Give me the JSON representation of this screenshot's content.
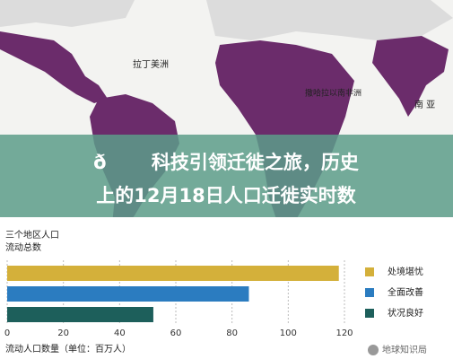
{
  "map": {
    "labels": [
      "拉丁美洲",
      "撒哈拉以南非洲",
      "南 亚"
    ]
  },
  "banner": {
    "lines": [
      "ð科技引领迁徙之旅，历史",
      "上的12月18日人口迁徙实时数"
    ]
  },
  "chart_data": {
    "type": "bar",
    "orientation": "horizontal",
    "title": [
      "三个地区人口",
      "流动总数"
    ],
    "categories": [
      "处境堪忧",
      "全面改善",
      "状况良好"
    ],
    "values": [
      118,
      86,
      52
    ],
    "colors": [
      "#d4b03a",
      "#2b7cc0",
      "#1d5f5b"
    ],
    "xlim": [
      0,
      120
    ],
    "xticks": [
      0,
      20,
      40,
      60,
      80,
      100,
      120
    ],
    "xlabel": "流动人口数量（单位：百万人）",
    "grid": true
  },
  "watermark": "地球知识局"
}
